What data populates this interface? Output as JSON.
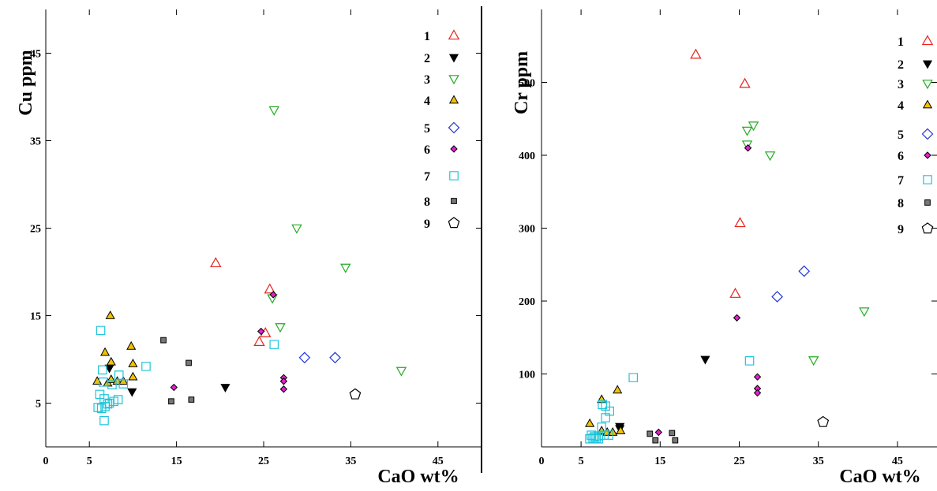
{
  "chart_data": [
    {
      "type": "scatter",
      "xlabel": "CaO wt%",
      "ylabel": "Cu ppm",
      "xlim": [
        0,
        50
      ],
      "ylim": [
        0,
        50
      ],
      "xticks": [
        "0",
        "5",
        "15",
        "25",
        "35",
        "45"
      ],
      "yticks": [
        "5",
        "15",
        "25",
        "35",
        "45"
      ],
      "legend_position": "top-right",
      "series": [
        {
          "name": "1",
          "marker": "triangle-up",
          "color": "#e8221c",
          "filled": false,
          "points": [
            [
              19.5,
              21
            ],
            [
              25.7,
              18
            ],
            [
              25.2,
              13
            ],
            [
              24.5,
              12
            ]
          ]
        },
        {
          "name": "2",
          "marker": "triangle-down",
          "color": "#000000",
          "filled": true,
          "points": [
            [
              7.3,
              9
            ],
            [
              9.9,
              6.3
            ],
            [
              20.6,
              6.8
            ]
          ]
        },
        {
          "name": "3",
          "marker": "triangle-down",
          "color": "#22aa22",
          "filled": false,
          "points": [
            [
              26.2,
              38.5
            ],
            [
              28.8,
              25
            ],
            [
              34.4,
              20.5
            ],
            [
              26,
              17
            ],
            [
              26.9,
              13.7
            ],
            [
              40.8,
              8.7
            ]
          ]
        },
        {
          "name": "4",
          "marker": "triangle-up",
          "color": "#000000",
          "fill": "#f2c200",
          "filled": true,
          "points": [
            [
              7.4,
              15
            ],
            [
              6.8,
              10.8
            ],
            [
              9.8,
              11.5
            ],
            [
              7.5,
              9.7
            ],
            [
              10,
              9.5
            ],
            [
              5.9,
              7.5
            ],
            [
              7.1,
              7.3
            ],
            [
              7.5,
              7.7
            ],
            [
              8.2,
              7.5
            ],
            [
              8.9,
              7.5
            ],
            [
              10,
              8
            ]
          ]
        },
        {
          "name": "5",
          "marker": "diamond",
          "color": "#1f35d6",
          "filled": false,
          "points": [
            [
              29.7,
              10.2
            ],
            [
              33.2,
              10.2
            ]
          ]
        },
        {
          "name": "6",
          "marker": "diamond-filled",
          "color": "#000000",
          "fill": "#e61fd0",
          "filled": true,
          "points": [
            [
              24.7,
              13.2
            ],
            [
              26.1,
              17.4
            ],
            [
              27.3,
              7.9
            ],
            [
              27.3,
              7.5
            ],
            [
              27.3,
              6.6
            ],
            [
              14.7,
              6.8
            ]
          ]
        },
        {
          "name": "7",
          "marker": "square",
          "color": "#1fc4d9",
          "filled": false,
          "points": [
            [
              6.3,
              13.3
            ],
            [
              11.5,
              9.2
            ],
            [
              26.2,
              11.7
            ],
            [
              6.5,
              8.8
            ],
            [
              6.6,
              7.4
            ],
            [
              7.6,
              7.1
            ],
            [
              8.4,
              8.2
            ],
            [
              8.9,
              7.2
            ],
            [
              6.2,
              6
            ],
            [
              6.7,
              5.5
            ],
            [
              7.3,
              5
            ],
            [
              7.8,
              5.2
            ],
            [
              8.3,
              5.4
            ],
            [
              7.1,
              4.9
            ],
            [
              6,
              4.5
            ],
            [
              6.4,
              4.4
            ],
            [
              6.8,
              4.6
            ],
            [
              6.7,
              3
            ]
          ]
        },
        {
          "name": "8",
          "marker": "square-filled",
          "color": "#000000",
          "fill": "#777777",
          "filled": true,
          "points": [
            [
              13.5,
              12.2
            ],
            [
              16.4,
              9.6
            ],
            [
              14.4,
              5.2
            ],
            [
              16.7,
              5.4
            ]
          ]
        },
        {
          "name": "9",
          "marker": "pentagon",
          "color": "#000000",
          "filled": false,
          "points": [
            [
              35.5,
              6
            ]
          ]
        }
      ]
    },
    {
      "type": "scatter",
      "xlabel": "CaO wt%",
      "ylabel": "Cr ppm",
      "xlim": [
        0,
        50
      ],
      "ylim": [
        0,
        600
      ],
      "xticks": [
        "0",
        "5",
        "15",
        "25",
        "35",
        "45"
      ],
      "yticks": [
        "100",
        "200",
        "300",
        "400",
        "500"
      ],
      "legend_position": "top-right",
      "series": [
        {
          "name": "1",
          "marker": "triangle-up",
          "color": "#e8221c",
          "filled": false,
          "points": [
            [
              19.5,
              538
            ],
            [
              25.7,
              498
            ],
            [
              25.1,
              307
            ],
            [
              24.5,
              210
            ]
          ]
        },
        {
          "name": "2",
          "marker": "triangle-down",
          "color": "#000000",
          "filled": true,
          "points": [
            [
              20.7,
              120
            ],
            [
              9.9,
              28
            ],
            [
              9.9,
              25
            ]
          ]
        },
        {
          "name": "3",
          "marker": "triangle-down",
          "color": "#22aa22",
          "filled": false,
          "points": [
            [
              26,
              434
            ],
            [
              26.8,
              441
            ],
            [
              26,
              415
            ],
            [
              28.9,
              400
            ],
            [
              40.8,
              186
            ],
            [
              34.4,
              119
            ]
          ]
        },
        {
          "name": "4",
          "marker": "triangle-up",
          "color": "#000000",
          "fill": "#f2c200",
          "filled": true,
          "points": [
            [
              7.6,
              65
            ],
            [
              9.6,
              78
            ],
            [
              6.1,
              32
            ],
            [
              7.6,
              22
            ],
            [
              8.3,
              20
            ],
            [
              9,
              20
            ],
            [
              10,
              22
            ]
          ]
        },
        {
          "name": "5",
          "marker": "diamond",
          "color": "#1f35d6",
          "filled": false,
          "points": [
            [
              33.2,
              241
            ],
            [
              29.8,
              206
            ]
          ]
        },
        {
          "name": "6",
          "marker": "diamond-filled",
          "color": "#000000",
          "fill": "#e61fd0",
          "filled": true,
          "points": [
            [
              26.1,
              410
            ],
            [
              24.7,
              177
            ],
            [
              27.3,
              96
            ],
            [
              27.3,
              80
            ],
            [
              27.3,
              74
            ],
            [
              14.8,
              20
            ]
          ]
        },
        {
          "name": "7",
          "marker": "square",
          "color": "#1fc4d9",
          "filled": false,
          "points": [
            [
              11.6,
              95
            ],
            [
              26.3,
              118
            ],
            [
              7.7,
              58
            ],
            [
              8.1,
              56
            ],
            [
              8.6,
              49
            ],
            [
              8.1,
              40
            ],
            [
              7.6,
              27
            ],
            [
              6.3,
              16
            ],
            [
              6.7,
              14
            ],
            [
              7.2,
              15
            ],
            [
              7.9,
              16
            ],
            [
              8.5,
              16
            ],
            [
              6.1,
              11
            ],
            [
              6.5,
              12
            ],
            [
              6.9,
              12
            ],
            [
              7.2,
              11
            ]
          ]
        },
        {
          "name": "8",
          "marker": "square-filled",
          "color": "#000000",
          "fill": "#777777",
          "filled": true,
          "points": [
            [
              13.7,
              18
            ],
            [
              14.4,
              9
            ],
            [
              16.5,
              19
            ],
            [
              16.9,
              9
            ]
          ]
        },
        {
          "name": "9",
          "marker": "pentagon",
          "color": "#000000",
          "filled": false,
          "points": [
            [
              35.6,
              34
            ]
          ]
        }
      ]
    }
  ]
}
